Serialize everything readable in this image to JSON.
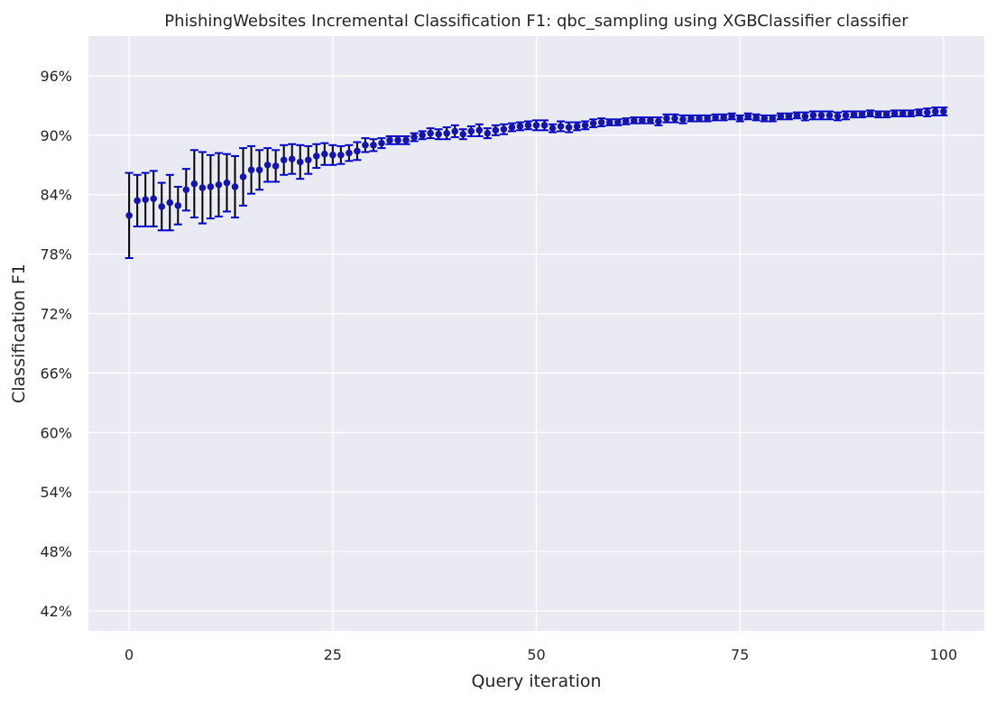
{
  "chart_data": {
    "type": "scatter",
    "title": "PhishingWebsites Incremental Classification F1: qbc_sampling using XGBClassifier classifier",
    "xlabel": "Query iteration",
    "ylabel": "Classification F1",
    "xlim": [
      -5,
      105
    ],
    "ylim": [
      0.4,
      1.0
    ],
    "xticks": [
      0,
      25,
      50,
      75,
      100
    ],
    "xtick_labels": [
      "0",
      "25",
      "50",
      "75",
      "100"
    ],
    "yticks": [
      0.42,
      0.48,
      0.54,
      0.6,
      0.66,
      0.72,
      0.78,
      0.84,
      0.9,
      0.96
    ],
    "ytick_labels": [
      "42%",
      "48%",
      "54%",
      "60%",
      "66%",
      "72%",
      "78%",
      "84%",
      "90%",
      "96%"
    ],
    "grid": true,
    "colors": {
      "background": "#eaeaf2",
      "grid": "#ffffff",
      "marker": "#1515a8",
      "errorbar": "#000000",
      "cap": "#0000cc"
    },
    "series": [
      {
        "x": [
          0,
          1,
          2,
          3,
          4,
          5,
          6,
          7,
          8,
          9,
          10,
          11,
          12,
          13,
          14,
          15,
          16,
          17,
          18,
          19,
          20,
          21,
          22,
          23,
          24,
          25,
          26,
          27,
          28,
          29,
          30,
          31,
          32,
          33,
          34,
          35,
          36,
          37,
          38,
          39,
          40,
          41,
          42,
          43,
          44,
          45,
          46,
          47,
          48,
          49,
          50,
          51,
          52,
          53,
          54,
          55,
          56,
          57,
          58,
          59,
          60,
          61,
          62,
          63,
          64,
          65,
          66,
          67,
          68,
          69,
          70,
          71,
          72,
          73,
          74,
          75,
          76,
          77,
          78,
          79,
          80,
          81,
          82,
          83,
          84,
          85,
          86,
          87,
          88,
          89,
          90,
          91,
          92,
          93,
          94,
          95,
          96,
          97,
          98,
          99,
          100
        ],
        "y": [
          0.819,
          0.834,
          0.835,
          0.836,
          0.828,
          0.832,
          0.829,
          0.845,
          0.851,
          0.847,
          0.848,
          0.85,
          0.852,
          0.848,
          0.858,
          0.865,
          0.865,
          0.87,
          0.869,
          0.875,
          0.876,
          0.873,
          0.875,
          0.879,
          0.881,
          0.88,
          0.88,
          0.882,
          0.884,
          0.89,
          0.89,
          0.892,
          0.895,
          0.895,
          0.895,
          0.898,
          0.9,
          0.902,
          0.901,
          0.902,
          0.904,
          0.901,
          0.904,
          0.905,
          0.902,
          0.905,
          0.906,
          0.908,
          0.909,
          0.91,
          0.91,
          0.91,
          0.907,
          0.909,
          0.908,
          0.909,
          0.91,
          0.912,
          0.913,
          0.913,
          0.913,
          0.914,
          0.915,
          0.915,
          0.915,
          0.914,
          0.917,
          0.917,
          0.916,
          0.917,
          0.917,
          0.917,
          0.918,
          0.918,
          0.919,
          0.917,
          0.919,
          0.918,
          0.917,
          0.917,
          0.919,
          0.919,
          0.92,
          0.919,
          0.92,
          0.92,
          0.92,
          0.919,
          0.92,
          0.921,
          0.921,
          0.922,
          0.921,
          0.921,
          0.922,
          0.922,
          0.922,
          0.923,
          0.923,
          0.924,
          0.924
        ],
        "err": [
          0.043,
          0.026,
          0.027,
          0.028,
          0.024,
          0.028,
          0.019,
          0.021,
          0.034,
          0.036,
          0.032,
          0.032,
          0.029,
          0.031,
          0.029,
          0.024,
          0.02,
          0.017,
          0.016,
          0.015,
          0.015,
          0.017,
          0.014,
          0.012,
          0.011,
          0.01,
          0.009,
          0.008,
          0.009,
          0.007,
          0.006,
          0.005,
          0.004,
          0.004,
          0.004,
          0.004,
          0.004,
          0.005,
          0.005,
          0.006,
          0.006,
          0.005,
          0.005,
          0.006,
          0.005,
          0.005,
          0.005,
          0.004,
          0.004,
          0.004,
          0.005,
          0.005,
          0.004,
          0.005,
          0.005,
          0.004,
          0.004,
          0.004,
          0.004,
          0.003,
          0.003,
          0.003,
          0.003,
          0.003,
          0.003,
          0.004,
          0.004,
          0.004,
          0.004,
          0.003,
          0.003,
          0.003,
          0.003,
          0.003,
          0.003,
          0.003,
          0.003,
          0.003,
          0.003,
          0.003,
          0.003,
          0.003,
          0.003,
          0.004,
          0.004,
          0.004,
          0.004,
          0.004,
          0.004,
          0.003,
          0.003,
          0.003,
          0.003,
          0.003,
          0.003,
          0.003,
          0.003,
          0.003,
          0.004,
          0.004,
          0.004
        ]
      }
    ]
  }
}
